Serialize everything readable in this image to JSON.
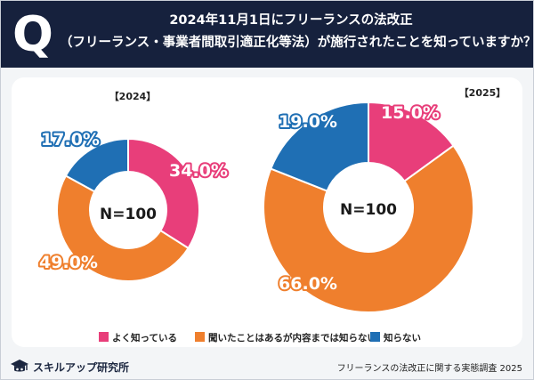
{
  "header": {
    "badge": "Q",
    "title_line1": "2024年11月1日にフリーランスの法改正",
    "title_line2": "（フリーランス・事業者間取引適正化等法）が施行されたことを知っていますか？"
  },
  "colors": {
    "header_bg": "#16213d",
    "pink": "#e83e7a",
    "orange": "#ef7f2d",
    "blue": "#1f6fb4"
  },
  "chart_data": [
    {
      "type": "pie",
      "title": "【2024】",
      "center_label": "N=100",
      "categories": [
        "よく知っている",
        "聞いたことはあるが内容までは知らない",
        "知らない"
      ],
      "values": [
        34.0,
        49.0,
        17.0
      ],
      "labels": [
        "34.0%",
        "49.0%",
        "17.0%"
      ]
    },
    {
      "type": "pie",
      "title": "【2025】",
      "center_label": "N=100",
      "categories": [
        "よく知っている",
        "聞いたことはあるが内容までは知らない",
        "知らない"
      ],
      "values": [
        15.0,
        66.0,
        19.0
      ],
      "labels": [
        "15.0%",
        "66.0%",
        "19.0%"
      ]
    }
  ],
  "legend": {
    "placement": "bottom-center",
    "items": [
      "よく知っている",
      "聞いたことはあるが内容までは知らない",
      "知らない"
    ]
  },
  "footer": {
    "logo_text": "スキルアップ研究所",
    "logo_icon": "graduation-cap-icon",
    "source": "フリーランスの法改正に関する実態調査 2025"
  }
}
